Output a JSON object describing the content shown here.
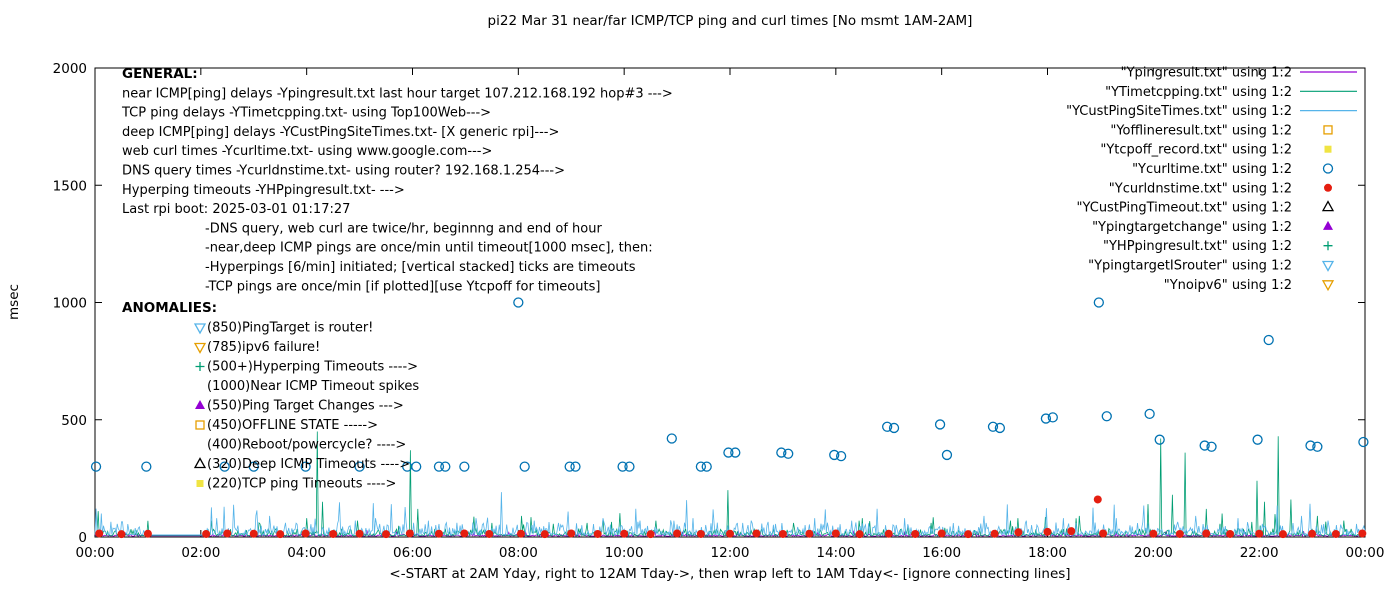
{
  "chart_data": {
    "type": "line",
    "title": "pi22 Mar 31  near/far ICMP/TCP ping and curl times [No msmt 1AM-2AM]",
    "xlabel": "<-START at 2AM Yday, right to 12AM Tday->, then wrap left to 1AM Tday<- [ignore connecting lines]",
    "ylabel": "msec",
    "xlim": [
      0,
      24
    ],
    "ylim": [
      0,
      2000
    ],
    "yticks": [
      0,
      500,
      1000,
      1500,
      2000
    ],
    "xticks": [
      {
        "t": 0,
        "label": "00:00"
      },
      {
        "t": 2,
        "label": "02:00"
      },
      {
        "t": 4,
        "label": "04:00"
      },
      {
        "t": 6,
        "label": "06:00"
      },
      {
        "t": 8,
        "label": "08:00"
      },
      {
        "t": 10,
        "label": "10:00"
      },
      {
        "t": 12,
        "label": "12:00"
      },
      {
        "t": 14,
        "label": "14:00"
      },
      {
        "t": 16,
        "label": "16:00"
      },
      {
        "t": 18,
        "label": "18:00"
      },
      {
        "t": 20,
        "label": "20:00"
      },
      {
        "t": 22,
        "label": "22:00"
      },
      {
        "t": 24,
        "label": "00:00"
      }
    ],
    "grid": false,
    "legend_position": "top-right",
    "gap": {
      "from": 1.02,
      "to": 2.08
    },
    "series": [
      {
        "name": "Ypingresult.txt",
        "legend_label": "\"Ypingresult.txt\" using 1:2",
        "style": "line",
        "color": "#9400d3",
        "baseline": {
          "mean": 4,
          "amp": 8,
          "flat": 5
        },
        "spikes": []
      },
      {
        "name": "YTimetcpping.txt",
        "legend_label": "\"YTimetcpping.txt\" using 1:2",
        "style": "line",
        "color": "#009e73",
        "baseline": {
          "mean": 6,
          "amp": 30,
          "flat": 7
        },
        "spikes": [
          [
            0.05,
            110
          ],
          [
            2.2,
            70
          ],
          [
            3.1,
            60
          ],
          [
            4.2,
            450
          ],
          [
            4.3,
            150
          ],
          [
            4.95,
            70
          ],
          [
            5.95,
            370
          ],
          [
            6.1,
            120
          ],
          [
            7.5,
            60
          ],
          [
            8.05,
            90
          ],
          [
            9.3,
            60
          ],
          [
            10.6,
            70
          ],
          [
            11.95,
            200
          ],
          [
            13.2,
            60
          ],
          [
            14.5,
            80
          ],
          [
            15.8,
            60
          ],
          [
            17.3,
            70
          ],
          [
            18.6,
            90
          ],
          [
            19.9,
            140
          ],
          [
            20.15,
            420
          ],
          [
            20.35,
            180
          ],
          [
            20.6,
            360
          ],
          [
            21.0,
            120
          ],
          [
            21.3,
            100
          ],
          [
            21.95,
            240
          ],
          [
            22.1,
            150
          ],
          [
            22.35,
            430
          ],
          [
            22.6,
            160
          ],
          [
            23.1,
            90
          ],
          [
            23.6,
            70
          ]
        ]
      },
      {
        "name": "YCustPingSiteTimes.txt",
        "legend_label": "\"YCustPingSiteTimes.txt\" using 1:2",
        "style": "line",
        "color": "#56b4e9",
        "baseline": {
          "mean": 10,
          "amp": 55,
          "flat": 9
        },
        "spikes": [
          [
            0.12,
            100
          ],
          [
            2.3,
            80
          ],
          [
            3.3,
            90
          ],
          [
            4.6,
            70
          ],
          [
            5.3,
            80
          ],
          [
            6.3,
            70
          ],
          [
            7.2,
            80
          ],
          [
            8.3,
            70
          ],
          [
            9.6,
            80
          ],
          [
            10.3,
            70
          ],
          [
            11.3,
            80
          ],
          [
            12.4,
            70
          ],
          [
            13.6,
            80
          ],
          [
            14.3,
            70
          ],
          [
            15.3,
            80
          ],
          [
            16.8,
            90
          ],
          [
            17.6,
            70
          ],
          [
            18.3,
            80
          ],
          [
            19.3,
            80
          ],
          [
            20.8,
            90
          ],
          [
            21.6,
            80
          ],
          [
            22.8,
            90
          ],
          [
            23.3,
            70
          ]
        ]
      },
      {
        "name": "Yofflineresult.txt",
        "legend_label": "\"Yofflineresult.txt\" using 1:2",
        "style": "points",
        "marker": "square-open",
        "color": "#e69f00",
        "points": []
      },
      {
        "name": "Ytcpoff_record.txt",
        "legend_label": "\"Ytcpoff_record.txt\" using 1:2",
        "style": "points",
        "marker": "square-filled",
        "color": "#f0e442",
        "points": []
      },
      {
        "name": "Ycurltime.txt",
        "legend_label": "\"Ycurltime.txt\" using 1:2",
        "style": "points",
        "marker": "circle-open",
        "color": "#0072b2",
        "points": [
          [
            0.02,
            300
          ],
          [
            0.97,
            300
          ],
          [
            2.45,
            300
          ],
          [
            3.0,
            300
          ],
          [
            3.98,
            300
          ],
          [
            5.0,
            300
          ],
          [
            5.9,
            300
          ],
          [
            6.07,
            300
          ],
          [
            6.5,
            300
          ],
          [
            6.62,
            300
          ],
          [
            6.98,
            300
          ],
          [
            8.0,
            1000
          ],
          [
            8.12,
            300
          ],
          [
            8.97,
            300
          ],
          [
            9.08,
            300
          ],
          [
            9.97,
            300
          ],
          [
            10.1,
            300
          ],
          [
            10.9,
            420
          ],
          [
            11.45,
            300
          ],
          [
            11.56,
            300
          ],
          [
            11.97,
            360
          ],
          [
            12.1,
            360
          ],
          [
            12.97,
            360
          ],
          [
            13.1,
            355
          ],
          [
            13.97,
            350
          ],
          [
            14.1,
            345
          ],
          [
            14.97,
            470
          ],
          [
            15.1,
            465
          ],
          [
            15.97,
            480
          ],
          [
            16.1,
            350
          ],
          [
            16.97,
            470
          ],
          [
            17.1,
            465
          ],
          [
            17.97,
            505
          ],
          [
            18.1,
            510
          ],
          [
            18.97,
            1000
          ],
          [
            19.12,
            515
          ],
          [
            19.93,
            525
          ],
          [
            20.12,
            415
          ],
          [
            20.97,
            390
          ],
          [
            21.1,
            385
          ],
          [
            21.97,
            415
          ],
          [
            22.18,
            840
          ],
          [
            22.97,
            390
          ],
          [
            23.1,
            385
          ],
          [
            23.97,
            405
          ]
        ]
      },
      {
        "name": "Ycurldnstime.txt",
        "legend_label": "\"Ycurldnstime.txt\" using 1:2",
        "style": "points",
        "marker": "circle-filled",
        "color": "#e51e10",
        "points": [
          [
            0.08,
            15
          ],
          [
            0.5,
            12
          ],
          [
            1.0,
            14
          ],
          [
            2.1,
            13
          ],
          [
            2.5,
            15
          ],
          [
            3.0,
            14
          ],
          [
            3.5,
            12
          ],
          [
            3.98,
            15
          ],
          [
            4.5,
            13
          ],
          [
            5.0,
            14
          ],
          [
            5.5,
            12
          ],
          [
            5.95,
            15
          ],
          [
            6.5,
            14
          ],
          [
            6.98,
            15
          ],
          [
            7.45,
            13
          ],
          [
            8.05,
            14
          ],
          [
            8.5,
            12
          ],
          [
            9.0,
            15
          ],
          [
            9.5,
            13
          ],
          [
            10.0,
            14
          ],
          [
            10.5,
            12
          ],
          [
            11.0,
            15
          ],
          [
            11.45,
            13
          ],
          [
            12.0,
            14
          ],
          [
            12.5,
            15
          ],
          [
            13.0,
            13
          ],
          [
            13.5,
            14
          ],
          [
            14.0,
            15
          ],
          [
            14.45,
            12
          ],
          [
            15.0,
            14
          ],
          [
            15.5,
            13
          ],
          [
            16.0,
            15
          ],
          [
            16.5,
            12
          ],
          [
            17.0,
            14
          ],
          [
            17.45,
            20
          ],
          [
            18.0,
            22
          ],
          [
            18.45,
            25
          ],
          [
            18.95,
            160
          ],
          [
            19.05,
            15
          ],
          [
            20.0,
            14
          ],
          [
            20.5,
            13
          ],
          [
            21.0,
            15
          ],
          [
            21.45,
            13
          ],
          [
            22.0,
            14
          ],
          [
            22.45,
            12
          ],
          [
            23.0,
            14
          ],
          [
            23.45,
            13
          ],
          [
            23.95,
            15
          ]
        ]
      },
      {
        "name": "YCustPingTimeout.txt",
        "legend_label": "\"YCustPingTimeout.txt\" using 1:2",
        "style": "points",
        "marker": "triangle-up-open",
        "color": "#000000",
        "points": []
      },
      {
        "name": "Ypingtargetchange",
        "legend_label": "\"Ypingtargetchange\" using 1:2",
        "style": "points",
        "marker": "triangle-up-filled",
        "color": "#9400d3",
        "points": []
      },
      {
        "name": "YHPpingresult.txt",
        "legend_label": "\"YHPpingresult.txt\" using 1:2",
        "style": "points",
        "marker": "plus",
        "color": "#009e73",
        "points": []
      },
      {
        "name": "YpingtargetISrouter",
        "legend_label": "\"YpingtargetISrouter\" using 1:2",
        "style": "points",
        "marker": "triangle-down-open",
        "color": "#56b4e9",
        "points": []
      },
      {
        "name": "Ynoipv6",
        "legend_label": "\"Ynoipv6\" using 1:2",
        "style": "points",
        "marker": "triangle-down-open",
        "color": "#e69f00",
        "points": []
      }
    ]
  },
  "annotations": {
    "general": {
      "heading": "GENERAL:",
      "lines": [
        {
          "indent": 0,
          "text": "near ICMP[ping] delays -Ypingresult.txt last hour target 107.212.168.192 hop#3 --->"
        },
        {
          "indent": 0,
          "text": "TCP ping delays -YTimetcpping.txt- using Top100Web--->"
        },
        {
          "indent": 0,
          "text": "deep ICMP[ping] delays -YCustPingSiteTimes.txt- [X generic rpi]--->"
        },
        {
          "indent": 0,
          "text": "web curl times -Ycurltime.txt- using www.google.com--->"
        },
        {
          "indent": 0,
          "text": "DNS query times -Ycurldnstime.txt- using router? 192.168.1.254--->"
        },
        {
          "indent": 0,
          "text": "Hyperping timeouts -YHPpingresult.txt- --->"
        },
        {
          "indent": 0,
          "text": "Last rpi boot: 2025-03-01 01:17:27"
        },
        {
          "indent": 1,
          "text": "-DNS query, web curl are twice/hr, beginnng and end of hour"
        },
        {
          "indent": 1,
          "text": "-near,deep ICMP pings are once/min until timeout[1000 msec], then:"
        },
        {
          "indent": 1,
          "text": "-Hyperpings [6/min] initiated; [vertical stacked] ticks are timeouts"
        },
        {
          "indent": 1,
          "text": "-TCP pings are once/min [if plotted][use Ytcpoff for timeouts]"
        }
      ]
    },
    "anomalies": {
      "heading": "ANOMALIES:",
      "items": [
        {
          "marker": "triangle-down-open",
          "color": "#56b4e9",
          "text": "(850)PingTarget is router!"
        },
        {
          "marker": "triangle-down-open",
          "color": "#e69f00",
          "text": "(785)ipv6 failure!"
        },
        {
          "marker": "plus",
          "color": "#009e73",
          "text": "(500+)Hyperping Timeouts ---->"
        },
        {
          "marker": "none",
          "color": "#000000",
          "text": "(1000)Near ICMP Timeout spikes"
        },
        {
          "marker": "triangle-up-filled",
          "color": "#9400d3",
          "text": "(550)Ping Target Changes --->"
        },
        {
          "marker": "square-open",
          "color": "#e69f00",
          "text": "(450)OFFLINE STATE ----->"
        },
        {
          "marker": "none",
          "color": "#000000",
          "text": "(400)Reboot/powercycle? ---->"
        },
        {
          "marker": "triangle-up-open",
          "color": "#000000",
          "text": "(320)Deep ICMP Timeouts ---->"
        },
        {
          "marker": "square-filled",
          "color": "#f0e442",
          "text": "(220)TCP ping Timeouts ---->"
        }
      ]
    }
  }
}
